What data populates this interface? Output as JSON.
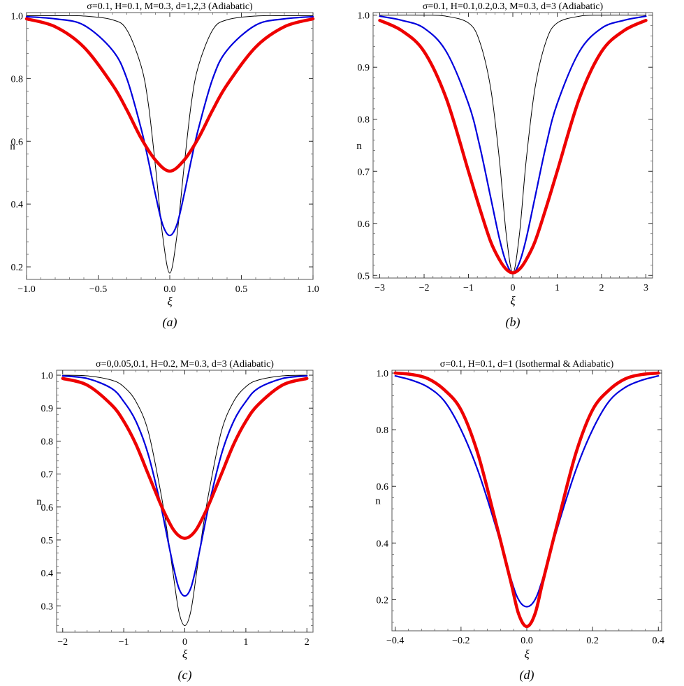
{
  "colors": {
    "thin": "#000000",
    "mid": "#0000dd",
    "thick": "#ee0000"
  },
  "chart_data": [
    {
      "type": "line",
      "title": "σ=0.1, H=0.1, M=0.3, d=1,2,3 (Adiabatic)",
      "xlabel": "ξ",
      "ylabel": "n",
      "caption": "(a)",
      "xlim": [
        -1.0,
        1.0
      ],
      "ylim": [
        0.16,
        1.01
      ],
      "xticks": [
        -1.0,
        -0.5,
        0.0,
        0.5,
        1.0
      ],
      "xtick_labels": [
        "−1.0",
        "−0.5",
        "0.0",
        "0.5",
        "1.0"
      ],
      "yticks": [
        0.2,
        0.4,
        0.6,
        0.8,
        1.0
      ],
      "ytick_labels": [
        "0.2",
        "0.4",
        "0.6",
        "0.8",
        "1.0"
      ],
      "series": [
        {
          "style": "thin",
          "x": [
            -1.0,
            -0.8,
            -0.6,
            -0.4,
            -0.3,
            -0.2,
            -0.15,
            -0.1,
            -0.05,
            0.0,
            0.05,
            0.1,
            0.15,
            0.2,
            0.3,
            0.4,
            0.6,
            0.8,
            1.0
          ],
          "y": [
            1.0,
            1.0,
            0.999,
            0.987,
            0.955,
            0.84,
            0.72,
            0.52,
            0.3,
            0.18,
            0.3,
            0.52,
            0.72,
            0.84,
            0.955,
            0.987,
            0.999,
            1.0,
            1.0
          ]
        },
        {
          "style": "mid",
          "x": [
            -1.0,
            -0.8,
            -0.6,
            -0.4,
            -0.3,
            -0.2,
            -0.15,
            -0.1,
            -0.05,
            0.0,
            0.05,
            0.1,
            0.15,
            0.2,
            0.3,
            0.4,
            0.6,
            0.8,
            1.0
          ],
          "y": [
            0.997,
            0.99,
            0.97,
            0.89,
            0.8,
            0.64,
            0.54,
            0.43,
            0.335,
            0.3,
            0.335,
            0.43,
            0.54,
            0.64,
            0.8,
            0.89,
            0.97,
            0.99,
            0.997
          ]
        },
        {
          "style": "thick",
          "x": [
            -1.0,
            -0.8,
            -0.6,
            -0.4,
            -0.3,
            -0.2,
            -0.1,
            0.0,
            0.1,
            0.2,
            0.3,
            0.4,
            0.6,
            0.8,
            1.0
          ],
          "y": [
            0.99,
            0.965,
            0.9,
            0.78,
            0.7,
            0.61,
            0.54,
            0.505,
            0.54,
            0.61,
            0.7,
            0.78,
            0.9,
            0.965,
            0.99
          ]
        }
      ]
    },
    {
      "type": "line",
      "title": "σ=0.1, H=0.1,0.2,0.3, M=0.3, d=3 (Adiabatic)",
      "xlabel": "ξ",
      "ylabel": "n",
      "caption": "(b)",
      "xlim": [
        -3.15,
        3.15
      ],
      "ylim": [
        0.495,
        1.005
      ],
      "xticks": [
        -3,
        -2,
        -1,
        0,
        1,
        2,
        3
      ],
      "xtick_labels": [
        "−3",
        "−2",
        "−1",
        "0",
        "1",
        "2",
        "3"
      ],
      "yticks": [
        0.5,
        0.6,
        0.7,
        0.8,
        0.9,
        1.0
      ],
      "ytick_labels": [
        "0.5",
        "0.6",
        "0.7",
        "0.8",
        "0.9",
        "1.0"
      ],
      "series": [
        {
          "style": "thin",
          "x": [
            -3.0,
            -2.0,
            -1.5,
            -1.0,
            -0.75,
            -0.5,
            -0.3,
            -0.15,
            0.0,
            0.15,
            0.3,
            0.5,
            0.75,
            1.0,
            1.5,
            2.0,
            3.0
          ],
          "y": [
            1.0,
            1.0,
            0.998,
            0.985,
            0.95,
            0.86,
            0.72,
            0.58,
            0.505,
            0.58,
            0.72,
            0.86,
            0.95,
            0.985,
            0.998,
            1.0,
            1.0
          ]
        },
        {
          "style": "mid",
          "x": [
            -3.0,
            -2.5,
            -2.0,
            -1.5,
            -1.0,
            -0.75,
            -0.5,
            -0.3,
            -0.15,
            0.0,
            0.15,
            0.3,
            0.5,
            0.75,
            1.0,
            1.5,
            2.0,
            2.5,
            3.0
          ],
          "y": [
            0.998,
            0.99,
            0.975,
            0.93,
            0.83,
            0.75,
            0.65,
            0.57,
            0.525,
            0.505,
            0.525,
            0.57,
            0.65,
            0.75,
            0.83,
            0.93,
            0.975,
            0.99,
            0.998
          ]
        },
        {
          "style": "thick",
          "x": [
            -3.0,
            -2.5,
            -2.0,
            -1.5,
            -1.0,
            -0.75,
            -0.5,
            -0.3,
            -0.15,
            0.0,
            0.15,
            0.3,
            0.5,
            0.75,
            1.0,
            1.5,
            2.0,
            2.5,
            3.0
          ],
          "y": [
            0.99,
            0.97,
            0.93,
            0.84,
            0.7,
            0.63,
            0.565,
            0.53,
            0.512,
            0.505,
            0.512,
            0.53,
            0.565,
            0.63,
            0.7,
            0.84,
            0.93,
            0.97,
            0.99
          ]
        }
      ]
    },
    {
      "type": "line",
      "title": "σ=0,0.05,0.1, H=0.2, M=0.3, d=3 (Adiabatic)",
      "xlabel": "ξ",
      "ylabel": "n",
      "caption": "(c)",
      "xlim": [
        -2.1,
        2.1
      ],
      "ylim": [
        0.22,
        1.015
      ],
      "xticks": [
        -2,
        -1,
        0,
        1,
        2
      ],
      "xtick_labels": [
        "−2",
        "−1",
        "0",
        "1",
        "2"
      ],
      "yticks": [
        0.3,
        0.4,
        0.5,
        0.6,
        0.7,
        0.8,
        0.9,
        1.0
      ],
      "ytick_labels": [
        "0.3",
        "0.4",
        "0.5",
        "0.6",
        "0.7",
        "0.8",
        "0.9",
        "1.0"
      ],
      "series": [
        {
          "style": "thin",
          "x": [
            -2.0,
            -1.6,
            -1.2,
            -1.0,
            -0.8,
            -0.6,
            -0.4,
            -0.3,
            -0.2,
            -0.1,
            0.0,
            0.1,
            0.2,
            0.3,
            0.4,
            0.6,
            0.8,
            1.0,
            1.2,
            1.6,
            2.0
          ],
          "y": [
            1.0,
            0.998,
            0.985,
            0.965,
            0.92,
            0.83,
            0.65,
            0.54,
            0.41,
            0.285,
            0.24,
            0.285,
            0.41,
            0.54,
            0.65,
            0.83,
            0.92,
            0.965,
            0.985,
            0.998,
            1.0
          ]
        },
        {
          "style": "mid",
          "x": [
            -2.0,
            -1.6,
            -1.2,
            -1.0,
            -0.8,
            -0.6,
            -0.4,
            -0.3,
            -0.2,
            -0.1,
            0.0,
            0.1,
            0.2,
            0.3,
            0.4,
            0.6,
            0.8,
            1.0,
            1.2,
            1.6,
            2.0
          ],
          "y": [
            0.998,
            0.99,
            0.96,
            0.92,
            0.86,
            0.76,
            0.61,
            0.52,
            0.43,
            0.355,
            0.33,
            0.355,
            0.43,
            0.52,
            0.61,
            0.76,
            0.86,
            0.92,
            0.96,
            0.99,
            0.998
          ]
        },
        {
          "style": "thick",
          "x": [
            -2.0,
            -1.6,
            -1.2,
            -1.0,
            -0.8,
            -0.6,
            -0.4,
            -0.3,
            -0.2,
            -0.1,
            0.0,
            0.1,
            0.2,
            0.3,
            0.4,
            0.6,
            0.8,
            1.0,
            1.2,
            1.6,
            2.0
          ],
          "y": [
            0.99,
            0.97,
            0.91,
            0.86,
            0.79,
            0.7,
            0.61,
            0.57,
            0.535,
            0.513,
            0.505,
            0.513,
            0.535,
            0.57,
            0.61,
            0.7,
            0.79,
            0.86,
            0.91,
            0.97,
            0.99
          ]
        }
      ]
    },
    {
      "type": "line",
      "title": "σ=0.1, H=0.1, d=1 (Isothermal & Adiabatic)",
      "xlabel": "ξ",
      "ylabel": "n",
      "caption": "(d)",
      "xlim": [
        -0.41,
        0.41
      ],
      "ylim": [
        0.09,
        1.01
      ],
      "xticks": [
        -0.4,
        -0.2,
        0.0,
        0.2,
        0.4
      ],
      "xtick_labels": [
        "−0.4",
        "−0.2",
        "0.0",
        "0.2",
        "0.4"
      ],
      "yticks": [
        0.2,
        0.4,
        0.6,
        0.8,
        1.0
      ],
      "ytick_labels": [
        "0.2",
        "0.4",
        "0.6",
        "0.8",
        "1.0"
      ],
      "series": [
        {
          "style": "mid",
          "x": [
            -0.4,
            -0.35,
            -0.3,
            -0.25,
            -0.2,
            -0.15,
            -0.1,
            -0.05,
            -0.025,
            0.0,
            0.025,
            0.05,
            0.1,
            0.15,
            0.2,
            0.25,
            0.3,
            0.35,
            0.4
          ],
          "y": [
            0.99,
            0.975,
            0.95,
            0.9,
            0.8,
            0.66,
            0.48,
            0.28,
            0.2,
            0.175,
            0.2,
            0.28,
            0.48,
            0.66,
            0.8,
            0.9,
            0.95,
            0.975,
            0.99
          ]
        },
        {
          "style": "thick",
          "x": [
            -0.4,
            -0.35,
            -0.3,
            -0.25,
            -0.2,
            -0.15,
            -0.1,
            -0.05,
            -0.025,
            0.0,
            0.025,
            0.05,
            0.1,
            0.15,
            0.2,
            0.25,
            0.3,
            0.35,
            0.4
          ],
          "y": [
            1.0,
            0.995,
            0.98,
            0.94,
            0.87,
            0.72,
            0.5,
            0.27,
            0.15,
            0.105,
            0.15,
            0.27,
            0.5,
            0.72,
            0.87,
            0.94,
            0.98,
            0.995,
            1.0
          ]
        }
      ]
    }
  ]
}
